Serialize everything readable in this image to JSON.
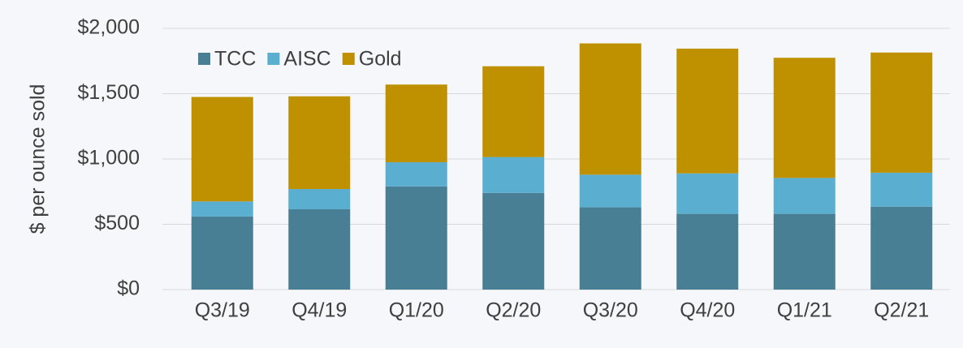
{
  "chart_data": {
    "type": "stacked_bar",
    "y_label": "$ per ounce sold",
    "categories": [
      "Q3/19",
      "Q4/19",
      "Q1/20",
      "Q2/20",
      "Q3/20",
      "Q4/20",
      "Q1/21",
      "Q2/21"
    ],
    "series": [
      {
        "name": "TCC",
        "color": "#487f94",
        "values": [
          560,
          615,
          790,
          740,
          630,
          580,
          580,
          635
        ]
      },
      {
        "name": "AISC",
        "color": "#5aaecf",
        "values": [
          115,
          155,
          185,
          275,
          250,
          310,
          275,
          260
        ]
      },
      {
        "name": "Gold",
        "color": "#bf9000",
        "values": [
          800,
          710,
          595,
          695,
          1005,
          955,
          920,
          920
        ]
      }
    ],
    "ylim": [
      0,
      2000
    ],
    "yticks": [
      {
        "value": 0,
        "label": "$0"
      },
      {
        "value": 500,
        "label": "$500"
      },
      {
        "value": 1000,
        "label": "$1,000"
      },
      {
        "value": 1500,
        "label": "$1,500"
      },
      {
        "value": 2000,
        "label": "$2,000"
      }
    ],
    "grid": true,
    "legend": "top-left"
  }
}
